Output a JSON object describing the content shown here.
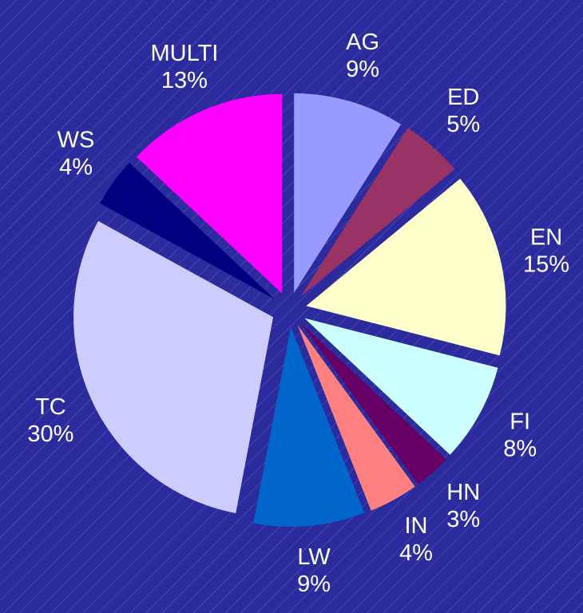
{
  "chart_data": {
    "type": "pie",
    "categories": [
      "AG",
      "ED",
      "EN",
      "FI",
      "HN",
      "IN",
      "LW",
      "TC",
      "WS",
      "MULTI"
    ],
    "values": [
      9,
      5,
      15,
      8,
      3,
      4,
      9,
      30,
      4,
      13
    ],
    "value_labels": [
      "9%",
      "5%",
      "15%",
      "8%",
      "3%",
      "4%",
      "9%",
      "30%",
      "4%",
      "13%"
    ],
    "colors": [
      "#9999ff",
      "#993366",
      "#ffffcc",
      "#ccffff",
      "#660066",
      "#ff8080",
      "#0066cc",
      "#ccccff",
      "#000080",
      "#ff00ff"
    ]
  }
}
